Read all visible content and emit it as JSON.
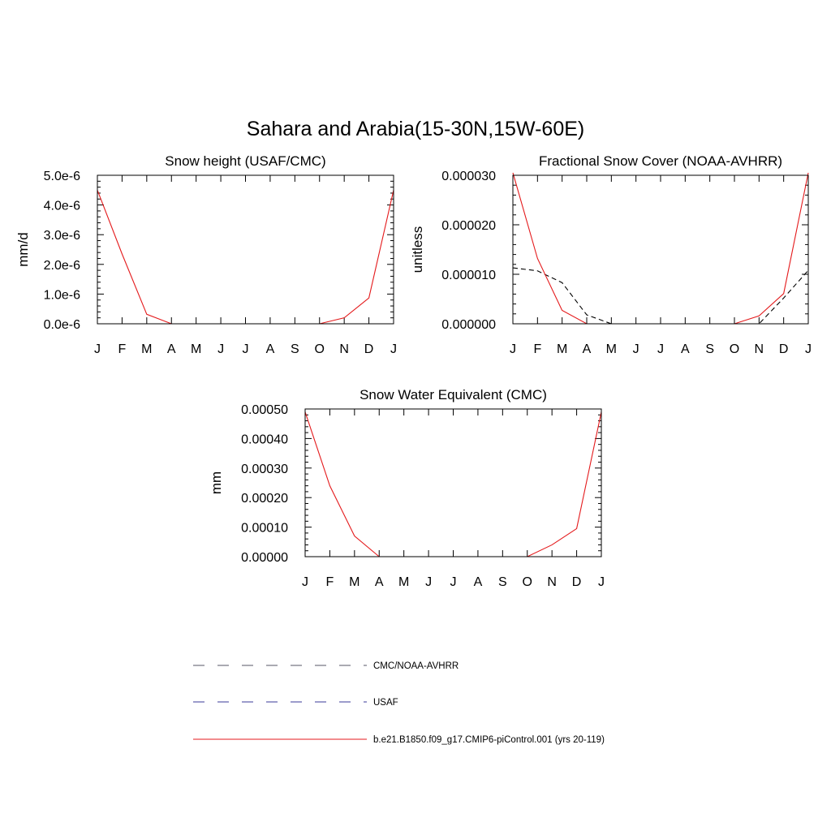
{
  "figure": {
    "title": "Sahara and Arabia(15-30N,15W-60E)"
  },
  "colors": {
    "model": "#e41a1c",
    "obs1": "#000000",
    "obs2": "#1f1fa0"
  },
  "legend": {
    "items": [
      {
        "label": "CMC/NOAA-AVHRR",
        "style": "dashed",
        "color": "#555566"
      },
      {
        "label": "USAF",
        "style": "dashed",
        "color": "#3a3a99"
      },
      {
        "label": "b.e21.B1850.f09_g17.CMIP6-piControl.001 (yrs 20-119)",
        "style": "solid",
        "color": "#e41a1c"
      }
    ]
  },
  "chart_data": [
    {
      "type": "line",
      "title": "Snow height (USAF/CMC)",
      "xlabel": "",
      "ylabel": "mm/d",
      "categories": [
        "J",
        "F",
        "M",
        "A",
        "M",
        "J",
        "J",
        "A",
        "S",
        "O",
        "N",
        "D",
        "J"
      ],
      "ylim": [
        0,
        5e-06
      ],
      "yticks": [
        0,
        1e-06,
        2e-06,
        3e-06,
        4e-06,
        5e-06
      ],
      "ytick_labels": [
        "0.0e-6",
        "1.0e-6",
        "2.0e-6",
        "3.0e-6",
        "4.0e-6",
        "5.0e-6"
      ],
      "series": [
        {
          "values": [
            4.5e-06,
            2.35e-06,
            3.2e-07,
            0,
            0,
            0,
            0,
            0,
            0,
            0,
            2e-07,
            8.7e-07,
            4.5e-06
          ],
          "color": "#e41a1c",
          "style": "solid"
        },
        {
          "values": [
            0,
            0,
            0,
            0,
            0,
            0,
            0,
            0,
            0,
            0,
            0,
            0,
            0
          ],
          "color": "#000000",
          "style": "dashed"
        },
        {
          "values": [
            0,
            0,
            0,
            0,
            0,
            0,
            0,
            0,
            0,
            0,
            0,
            0,
            0
          ],
          "color": "#1f1fa0",
          "style": "dashed"
        }
      ]
    },
    {
      "type": "line",
      "title": "Fractional Snow Cover (NOAA-AVHRR)",
      "xlabel": "",
      "ylabel": "unitless",
      "categories": [
        "J",
        "F",
        "M",
        "A",
        "M",
        "J",
        "J",
        "A",
        "S",
        "O",
        "N",
        "D",
        "J"
      ],
      "ylim": [
        0,
        3e-05
      ],
      "yticks": [
        0,
        1e-05,
        2e-05,
        3e-05
      ],
      "ytick_labels": [
        "0.000000",
        "0.000010",
        "0.000020",
        "0.000030"
      ],
      "series": [
        {
          "values": [
            3.05e-05,
            1.32e-05,
            2.7e-06,
            0,
            0,
            0,
            0,
            0,
            0,
            0,
            1.6e-06,
            6.1e-06,
            3.05e-05
          ],
          "color": "#e41a1c",
          "style": "solid"
        },
        {
          "values": [
            1.13e-05,
            1.07e-05,
            8.3e-06,
            1.8e-06,
            0,
            0,
            0,
            0,
            0,
            0,
            0,
            5.2e-06,
            1.08e-05
          ],
          "color": "#000000",
          "style": "dashed"
        }
      ]
    },
    {
      "type": "line",
      "title": "Snow Water Equivalent (CMC)",
      "xlabel": "",
      "ylabel": "mm",
      "categories": [
        "J",
        "F",
        "M",
        "A",
        "M",
        "J",
        "J",
        "A",
        "S",
        "O",
        "N",
        "D",
        "J"
      ],
      "ylim": [
        0,
        0.0005
      ],
      "yticks": [
        0,
        0.0001,
        0.0002,
        0.0003,
        0.0004,
        0.0005
      ],
      "ytick_labels": [
        "0.00000",
        "0.00010",
        "0.00020",
        "0.00030",
        "0.00040",
        "0.00050"
      ],
      "series": [
        {
          "values": [
            0.00049,
            0.00024,
            7e-05,
            0,
            0,
            0,
            0,
            0,
            0,
            0,
            4e-05,
            9.5e-05,
            0.00049
          ],
          "color": "#e41a1c",
          "style": "solid"
        },
        {
          "values": [
            0,
            0,
            0,
            0,
            0,
            0,
            0,
            0,
            0,
            0,
            0,
            0,
            0
          ],
          "color": "#000000",
          "style": "dashed"
        }
      ]
    }
  ]
}
